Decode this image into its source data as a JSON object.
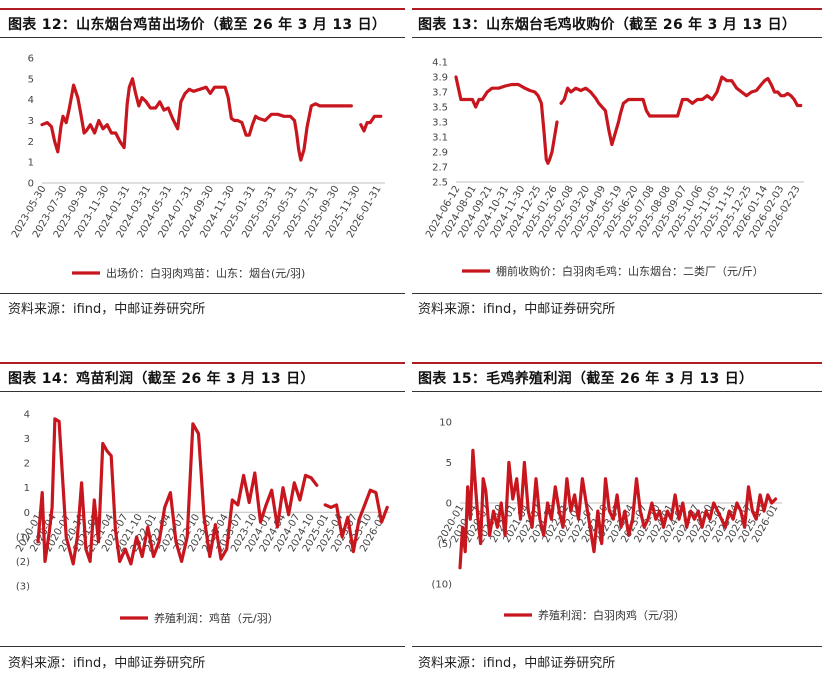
{
  "panels": [
    {
      "title": "图表 12：山东烟台鸡苗出场价（截至 26 年 3 月 13 日）",
      "source": "资料来源：ifind，中邮证券研究所",
      "chart_data": {
        "type": "line",
        "ylim": [
          0,
          6
        ],
        "yticks": [
          0,
          1,
          2,
          3,
          4,
          5,
          6
        ],
        "ytick_labels": [
          "0",
          "1",
          "2",
          "3",
          "4",
          "5",
          "6"
        ],
        "xtick_labels": [
          "2023-05-30",
          "2023-07-30",
          "2023-09-30",
          "2023-11-30",
          "2024-01-31",
          "2024-03-31",
          "2024-05-31",
          "2024-07-31",
          "2024-09-30",
          "2024-11-30",
          "2025-01-31",
          "2025-03-31",
          "2025-05-31",
          "2025-07-31",
          "2025-09-30",
          "2025-11-30",
          "2026-01-31"
        ],
        "legend_position": "bottom",
        "series": [
          {
            "name": "出场价：白羽肉鸡苗：山东：烟台(元/羽)",
            "color": "#c8161e",
            "x": [
              0,
              0.25,
              0.45,
              0.6,
              0.75,
              0.9,
              1.0,
              1.15,
              1.3,
              1.5,
              1.7,
              1.85,
              2.0,
              2.1,
              2.3,
              2.5,
              2.7,
              2.9,
              3.1,
              3.3,
              3.5,
              3.7,
              3.9,
              4.05,
              4.15,
              4.3,
              4.45,
              4.6,
              4.75,
              4.95,
              5.15,
              5.4,
              5.6,
              5.8,
              6.0,
              6.2,
              6.45,
              6.6,
              6.8,
              7.0,
              7.2,
              7.5,
              7.8,
              8.0,
              8.2,
              8.5,
              8.7,
              8.85,
              9.0,
              9.15,
              9.3,
              9.5,
              9.7,
              9.85,
              10.0,
              10.15,
              10.3,
              10.6,
              10.9,
              11.2,
              11.5,
              11.8,
              12.0,
              12.1,
              12.2,
              12.3,
              12.45,
              12.6,
              12.8,
              13.0,
              13.2,
              13.5,
              13.8,
              14.1,
              14.4,
              14.7,
              15.0,
              15.15,
              15.3,
              15.45,
              15.6,
              15.8,
              15.95,
              16.1
            ],
            "y": [
              2.8,
              2.9,
              2.7,
              2.0,
              1.5,
              2.7,
              3.2,
              2.9,
              3.6,
              4.7,
              4.1,
              3.3,
              2.4,
              2.5,
              2.8,
              2.4,
              3.0,
              2.6,
              2.8,
              2.4,
              2.4,
              2.0,
              1.7,
              3.8,
              4.6,
              5.0,
              4.3,
              3.7,
              4.1,
              3.9,
              3.6,
              3.6,
              3.9,
              3.5,
              3.6,
              3.1,
              2.6,
              3.9,
              4.3,
              4.5,
              4.4,
              4.5,
              4.6,
              4.3,
              4.6,
              4.6,
              4.6,
              4.1,
              3.1,
              3.0,
              3.0,
              2.9,
              2.3,
              2.3,
              2.8,
              3.2,
              3.1,
              3.0,
              3.3,
              3.3,
              3.2,
              3.2,
              3.0,
              2.4,
              1.6,
              1.1,
              1.6,
              2.7,
              3.7,
              3.8,
              3.7,
              3.7,
              3.7,
              3.7,
              3.7,
              3.7,
              null,
              2.8,
              2.5,
              2.9,
              2.9,
              3.2,
              3.2,
              3.2
            ]
          }
        ]
      }
    },
    {
      "title": "图表 13：山东烟台毛鸡收购价（截至 26 年 3 月 13 日）",
      "source": "资料来源：ifind，中邮证券研究所",
      "chart_data": {
        "type": "line",
        "ylim": [
          2.5,
          4.1
        ],
        "yticks": [
          2.5,
          2.7,
          2.9,
          3.1,
          3.3,
          3.5,
          3.7,
          3.9,
          4.1
        ],
        "ytick_labels": [
          "2.5",
          "2.7",
          "2.9",
          "3.1",
          "3.3",
          "3.5",
          "3.7",
          "3.9",
          "4.1"
        ],
        "xtick_labels": [
          "2024-06-12",
          "2024-08-01",
          "2024-09-21",
          "2024-10-31",
          "2024-11-30",
          "2024-12-25",
          "2025-01-26",
          "2025-02-08",
          "2025-03-20",
          "2025-04-09",
          "2025-05-19",
          "2025-06-20",
          "2025-07-08",
          "2025-08-08",
          "2025-09-07",
          "2025-10-06",
          "2025-11-05",
          "2025-11-15",
          "2025-12-25",
          "2026-01-14",
          "2026-02-03",
          "2026-02-23"
        ],
        "legend_position": "bottom",
        "series": [
          {
            "name": "棚前收购价：白羽肉毛鸡：山东烟台：二类厂（元/斤）",
            "color": "#c8161e",
            "x": [
              0,
              0.1,
              0.3,
              0.5,
              0.8,
              1.0,
              1.2,
              1.4,
              1.6,
              1.9,
              2.2,
              2.6,
              3.0,
              3.4,
              3.8,
              4.2,
              4.5,
              4.8,
              5.0,
              5.2,
              5.35,
              5.5,
              5.6,
              5.7,
              5.85,
              6.0,
              6.15,
              null,
              6.4,
              6.6,
              6.8,
              7.0,
              7.3,
              7.6,
              7.9,
              8.2,
              8.5,
              8.7,
              8.9,
              9.1,
              9.3,
              9.5,
              9.7,
              9.9,
              10.0,
              10.2,
              10.5,
              10.8,
              11.1,
              11.4,
              11.6,
              11.8,
              12.0,
              12.3,
              12.6,
              12.9,
              13.2,
              13.5,
              13.8,
              14.1,
              14.4,
              14.7,
              15.0,
              15.3,
              15.6,
              15.9,
              16.2,
              16.5,
              16.8,
              17.1,
              17.4,
              17.7,
              18.0,
              18.3,
              18.6,
              18.8,
              19.0,
              19.2,
              19.4,
              19.6,
              19.8,
              20.0,
              20.2,
              20.4,
              20.6,
              20.8,
              21.0
            ],
            "y": [
              3.9,
              3.8,
              3.6,
              3.6,
              3.6,
              3.6,
              3.5,
              3.6,
              3.6,
              3.7,
              3.75,
              3.75,
              3.78,
              3.8,
              3.8,
              3.75,
              3.72,
              3.7,
              3.65,
              3.55,
              3.2,
              2.8,
              2.75,
              2.8,
              2.9,
              3.1,
              3.3,
              null,
              3.55,
              3.6,
              3.75,
              3.7,
              3.75,
              3.72,
              3.75,
              3.7,
              3.62,
              3.55,
              3.5,
              3.45,
              3.2,
              3.0,
              3.15,
              3.3,
              3.4,
              3.55,
              3.6,
              3.6,
              3.6,
              3.6,
              3.45,
              3.38,
              3.38,
              3.38,
              3.38,
              3.38,
              3.38,
              3.38,
              3.6,
              3.6,
              3.55,
              3.6,
              3.6,
              3.65,
              3.6,
              3.7,
              3.9,
              3.85,
              3.85,
              3.75,
              3.7,
              3.65,
              3.7,
              3.72,
              3.8,
              3.85,
              3.88,
              3.8,
              3.7,
              3.7,
              3.65,
              3.65,
              3.68,
              3.65,
              3.6,
              3.52,
              3.52
            ]
          }
        ]
      }
    },
    {
      "title": "图表 14：鸡苗利润（截至 26 年 3 月 13 日）",
      "source": "资料来源：ifind，中邮证券研究所",
      "chart_data": {
        "type": "line",
        "ylim": [
          -3,
          4
        ],
        "yticks": [
          -3,
          -2,
          -1,
          0,
          1,
          2,
          3,
          4
        ],
        "ytick_labels": [
          "(3)",
          "(2)",
          "(1)",
          "0",
          "1",
          "2",
          "3",
          "4"
        ],
        "xtick_labels": [
          "2020-01",
          "2020-04",
          "2020-07",
          "2020-10",
          "2021-01",
          "2021-04",
          "2021-07",
          "2021-10",
          "2022-01",
          "2022-04",
          "2022-07",
          "2022-10",
          "2023-01",
          "2023-04",
          "2023-07",
          "2023-10",
          "2024-01",
          "2024-04",
          "2024-07",
          "2024-10",
          "2025-01",
          "2025-04",
          "2025-07",
          "2025-10",
          "2026-01"
        ],
        "legend_position": "bottom",
        "series": [
          {
            "name": "养殖利润：鸡苗（元/羽）",
            "color": "#c8161e",
            "x": [
              0,
              0.3,
              0.5,
              0.8,
              1.0,
              1.2,
              1.5,
              2.0,
              2.5,
              2.8,
              3.1,
              3.4,
              3.7,
              4.0,
              4.3,
              4.6,
              4.9,
              5.2,
              5.5,
              5.8,
              6.2,
              6.6,
              7.0,
              7.4,
              7.8,
              8.2,
              8.6,
              9.0,
              9.4,
              9.8,
              10.2,
              10.6,
              11.0,
              11.4,
              11.8,
              12.2,
              12.6,
              13.0,
              13.4,
              13.8,
              14.2,
              14.6,
              15.0,
              15.4,
              15.8,
              16.2,
              16.6,
              17.0,
              17.4,
              17.8,
              18.2,
              18.6,
              19.0,
              19.4,
              19.8,
              null,
              20.4,
              20.8,
              21.2,
              21.6,
              22.0,
              22.4,
              22.8,
              23.2,
              23.6,
              24.0,
              24.4,
              24.8
            ],
            "y": [
              -1.2,
              0.8,
              -2.0,
              -0.8,
              0.2,
              3.8,
              3.7,
              -1.0,
              -2.1,
              -1.0,
              1.2,
              -1.5,
              -2.0,
              0.5,
              -1.2,
              2.8,
              2.5,
              2.3,
              -0.7,
              -2.0,
              -1.5,
              -2.1,
              -1.0,
              -1.8,
              -0.6,
              -1.8,
              -1.2,
              0.2,
              0.8,
              -1.2,
              -2.0,
              -1.0,
              3.6,
              3.2,
              -0.2,
              -1.8,
              -0.5,
              -1.9,
              -1.5,
              0.5,
              0.3,
              1.5,
              0.4,
              1.6,
              -0.4,
              0.3,
              0.9,
              -0.6,
              1.0,
              -0.1,
              1.2,
              0.5,
              1.5,
              1.4,
              1.1,
              null,
              0.3,
              0.2,
              0.3,
              -1.0,
              -0.2,
              -1.6,
              -0.3,
              0.3,
              0.9,
              0.8,
              -0.4,
              0.2
            ]
          }
        ]
      }
    },
    {
      "title": "图表 15：毛鸡养殖利润（截至 26 年 3 月 13 日）",
      "source": "资料来源：ifind，中邮证券研究所",
      "chart_data": {
        "type": "line",
        "ylim": [
          -10,
          10
        ],
        "yticks": [
          -10,
          -5,
          0,
          5,
          10
        ],
        "ytick_labels": [
          "(10)",
          "(5)",
          "0",
          "5",
          "10"
        ],
        "xtick_labels": [
          "2020-01",
          "2020-04",
          "2020-07",
          "2020-10",
          "2021-01",
          "2021-04",
          "2021-07",
          "2021-10",
          "2022-01",
          "2022-04",
          "2022-07",
          "2022-10",
          "2023-01",
          "2023-04",
          "2023-07",
          "2023-10",
          "2024-01",
          "2024-04",
          "2024-07",
          "2024-10",
          "2025-01",
          "2025-04",
          "2025-07",
          "2025-10",
          "2026-01"
        ],
        "legend_position": "bottom",
        "series": [
          {
            "name": "养殖利润：白羽肉鸡（元/羽）",
            "color": "#c8161e",
            "x": [
              0,
              0.2,
              0.4,
              0.6,
              0.8,
              1.0,
              1.2,
              1.4,
              1.6,
              1.8,
              2.0,
              2.3,
              2.6,
              2.9,
              3.2,
              3.5,
              3.8,
              4.1,
              4.4,
              4.7,
              5.0,
              5.3,
              5.6,
              5.9,
              6.2,
              6.5,
              6.8,
              7.1,
              7.4,
              7.7,
              8.0,
              8.3,
              8.6,
              8.9,
              9.2,
              9.5,
              9.8,
              10.1,
              10.4,
              10.7,
              11.0,
              11.3,
              11.6,
              11.9,
              12.2,
              12.5,
              12.8,
              13.1,
              13.4,
              13.7,
              14.0,
              14.3,
              14.6,
              14.9,
              15.2,
              15.5,
              15.8,
              16.1,
              16.4,
              16.7,
              17.0,
              17.3,
              17.6,
              17.9,
              18.2,
              18.5,
              18.8,
              19.1,
              19.4,
              19.7,
              20.0,
              20.3,
              20.6,
              20.9,
              21.2,
              21.5,
              21.8,
              22.1,
              22.4,
              22.7,
              23.0,
              23.3,
              23.6,
              23.9,
              24.2,
              24.5
            ],
            "y": [
              -8,
              -3,
              -6,
              2,
              -2,
              6.5,
              2,
              -2,
              -5,
              3,
              1.5,
              -4,
              -1,
              -3,
              0,
              -4,
              5,
              0.5,
              3,
              -2,
              5,
              -1,
              -3,
              3,
              -2,
              -4,
              0,
              -2,
              2,
              -1,
              -3,
              3,
              -1,
              1,
              -2,
              3,
              0,
              -3,
              -6,
              -1,
              -5,
              3,
              -1,
              -2,
              1,
              -3,
              -1,
              -4,
              -2,
              3,
              -1,
              -3,
              -2,
              0,
              -2,
              -1,
              -3,
              -1,
              -2,
              1,
              -2,
              0,
              -3,
              -1,
              -2,
              -1,
              -3,
              -1,
              -2,
              0,
              -1,
              -2,
              -3,
              -1,
              -2,
              0,
              -1,
              -3,
              2,
              -1,
              -2,
              1,
              -1,
              1,
              0,
              0.5
            ]
          }
        ]
      }
    }
  ]
}
